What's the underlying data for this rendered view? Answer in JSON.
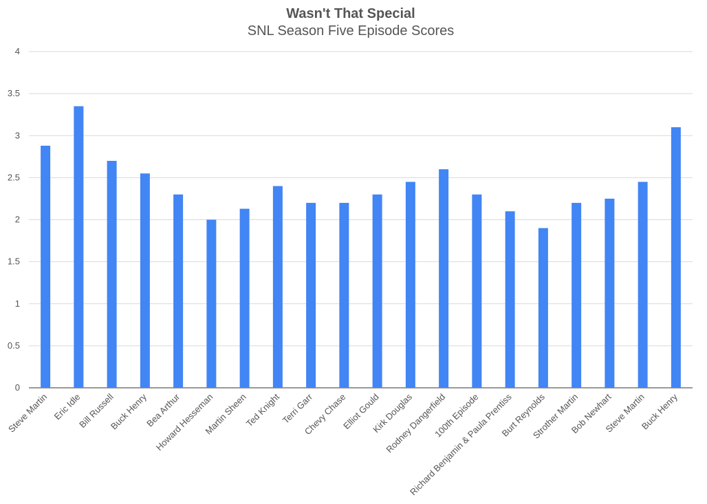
{
  "chart_data": {
    "type": "bar",
    "title": "Wasn't That Special",
    "subtitle": "SNL Season Five Episode Scores",
    "xlabel": "",
    "ylabel": "",
    "ylim": [
      0,
      4
    ],
    "yticks": [
      "0",
      "0.5",
      "1",
      "1.5",
      "2",
      "2.5",
      "3",
      "3.5",
      "4"
    ],
    "grid": true,
    "legend": "none",
    "bar_color": "#4285f4",
    "categories": [
      "Steve Martin",
      "Eric Idle",
      "Bill Russell",
      "Buck Henry",
      "Bea Arthur",
      "Howard Hesseman",
      "Martin Sheen",
      "Ted Knight",
      "Terri Garr",
      "Chevy Chase",
      "Elliot Gould",
      "Kirk Douglas",
      "Rodney Dangerfield",
      "100th Episode",
      "Richard Benjamin & Paula Prentiss",
      "Burt Reynolds",
      "Strother Martin",
      "Bob Newhart",
      "Steve Martin",
      "Buck Henry"
    ],
    "values": [
      2.88,
      3.35,
      2.7,
      2.55,
      2.3,
      2.0,
      2.13,
      2.4,
      2.2,
      2.2,
      2.3,
      2.45,
      2.6,
      2.3,
      2.1,
      1.9,
      2.2,
      2.25,
      2.45,
      3.1
    ]
  }
}
